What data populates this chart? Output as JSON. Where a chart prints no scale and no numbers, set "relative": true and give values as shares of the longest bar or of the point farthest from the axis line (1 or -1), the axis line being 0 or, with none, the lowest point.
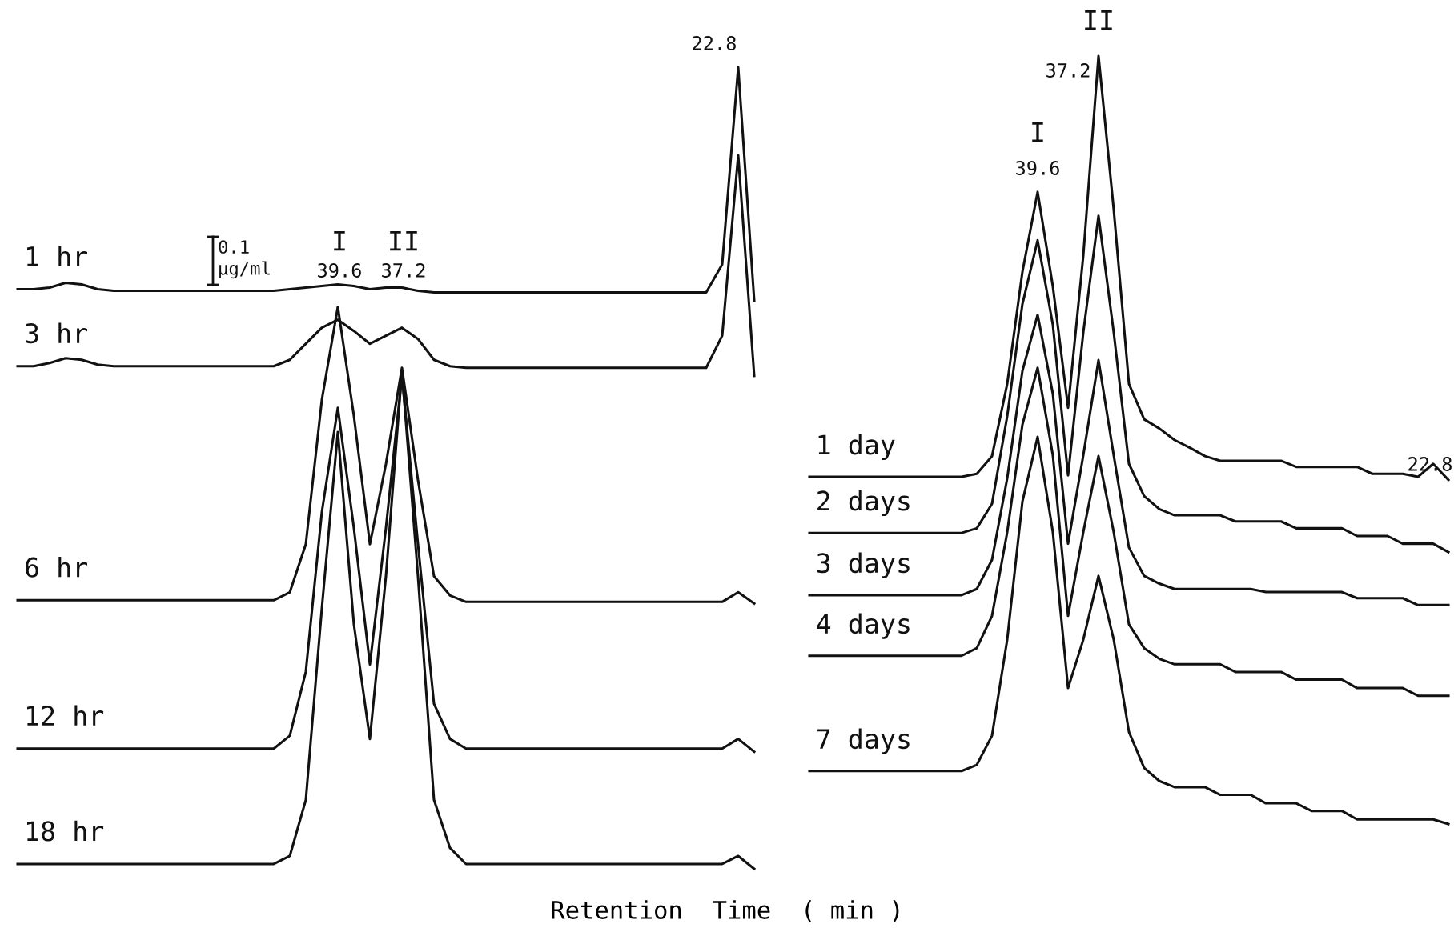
{
  "chart_data": [
    {
      "type": "line",
      "relative": true,
      "xlabel": "Retention  Time  ( min )",
      "grid": false,
      "legend": false,
      "marker": "none",
      "line_style": "solid",
      "categories": [
        null,
        null,
        null,
        null,
        null,
        null,
        null,
        null,
        null,
        null,
        null,
        null,
        null,
        null,
        null,
        null,
        null,
        null,
        null,
        null,
        null,
        null,
        null,
        null,
        null,
        null,
        null,
        null,
        null,
        null,
        null,
        null,
        null,
        null,
        null,
        null,
        null,
        null,
        null,
        null,
        null,
        null,
        null,
        null,
        null,
        null,
        null
      ],
      "annotations": [
        "0.1\nµg/ml",
        "I",
        "39.6",
        "II",
        "37.2",
        "22.8"
      ],
      "series": [
        {
          "name": "1 hr",
          "color": "#111111",
          "values": [
            0.723,
            0.723,
            0.725,
            0.731,
            0.729,
            0.723,
            0.721,
            0.721,
            0.721,
            0.721,
            0.721,
            0.721,
            0.721,
            0.721,
            0.721,
            0.721,
            0.721,
            0.723,
            0.725,
            0.727,
            0.729,
            0.727,
            0.723,
            0.725,
            0.725,
            0.721,
            0.719,
            0.719,
            0.719,
            0.719,
            0.719,
            0.719,
            0.719,
            0.719,
            0.719,
            0.719,
            0.719,
            0.719,
            0.719,
            0.719,
            0.719,
            0.719,
            0.719,
            0.719,
            0.754,
            1,
            0.709
          ]
        },
        {
          "name": "3 hr",
          "color": "#111111",
          "values": [
            0.627,
            0.627,
            0.631,
            0.637,
            0.635,
            0.629,
            0.627,
            0.627,
            0.627,
            0.627,
            0.627,
            0.627,
            0.627,
            0.627,
            0.627,
            0.627,
            0.627,
            0.635,
            0.655,
            0.675,
            0.685,
            0.671,
            0.655,
            0.665,
            0.675,
            0.661,
            0.635,
            0.627,
            0.625,
            0.625,
            0.625,
            0.625,
            0.625,
            0.625,
            0.625,
            0.625,
            0.625,
            0.625,
            0.625,
            0.625,
            0.625,
            0.625,
            0.625,
            0.625,
            0.665,
            0.89,
            0.615
          ]
        },
        {
          "name": "6 hr",
          "color": "#111111",
          "values": [
            0.335,
            0.335,
            0.335,
            0.335,
            0.335,
            0.335,
            0.335,
            0.335,
            0.335,
            0.335,
            0.335,
            0.335,
            0.335,
            0.335,
            0.335,
            0.335,
            0.335,
            0.345,
            0.405,
            0.585,
            0.701,
            0.565,
            0.405,
            0.505,
            0.625,
            0.485,
            0.365,
            0.341,
            0.333,
            0.333,
            0.333,
            0.333,
            0.333,
            0.333,
            0.333,
            0.333,
            0.333,
            0.333,
            0.333,
            0.333,
            0.333,
            0.333,
            0.333,
            0.333,
            0.333,
            0.345,
            0.331
          ]
        },
        {
          "name": "12 hr",
          "color": "#111111",
          "values": [
            0.15,
            0.15,
            0.15,
            0.15,
            0.15,
            0.15,
            0.15,
            0.15,
            0.15,
            0.15,
            0.15,
            0.15,
            0.15,
            0.15,
            0.15,
            0.15,
            0.15,
            0.166,
            0.246,
            0.445,
            0.575,
            0.425,
            0.255,
            0.425,
            0.615,
            0.405,
            0.206,
            0.162,
            0.15,
            0.15,
            0.15,
            0.15,
            0.15,
            0.15,
            0.15,
            0.15,
            0.15,
            0.15,
            0.15,
            0.15,
            0.15,
            0.15,
            0.15,
            0.15,
            0.15,
            0.162,
            0.146
          ]
        },
        {
          "name": "18 hr",
          "color": "#111111",
          "values": [
            0.006,
            0.006,
            0.006,
            0.006,
            0.006,
            0.006,
            0.006,
            0.006,
            0.006,
            0.006,
            0.006,
            0.006,
            0.006,
            0.006,
            0.006,
            0.006,
            0.006,
            0.016,
            0.086,
            0.325,
            0.545,
            0.305,
            0.162,
            0.365,
            0.621,
            0.365,
            0.086,
            0.026,
            0.006,
            0.006,
            0.006,
            0.006,
            0.006,
            0.006,
            0.006,
            0.006,
            0.006,
            0.006,
            0.006,
            0.006,
            0.006,
            0.006,
            0.006,
            0.006,
            0.006,
            0.016,
            0
          ]
        }
      ]
    },
    {
      "type": "line",
      "relative": true,
      "grid": false,
      "legend": false,
      "marker": "none",
      "line_style": "solid",
      "categories": [
        null,
        null,
        null,
        null,
        null,
        null,
        null,
        null,
        null,
        null,
        null,
        null,
        null,
        null,
        null,
        null,
        null,
        null,
        null,
        null,
        null,
        null,
        null,
        null,
        null,
        null,
        null,
        null,
        null,
        null,
        null,
        null,
        null,
        null,
        null,
        null,
        null,
        null,
        null,
        null,
        null,
        null,
        null
      ],
      "annotations": [
        "I",
        "39.6",
        "II",
        "37.2",
        "22.8"
      ],
      "series": [
        {
          "name": "1 day",
          "color": "#111111",
          "values": [
            0.452,
            0.452,
            0.452,
            0.452,
            0.452,
            0.452,
            0.452,
            0.452,
            0.452,
            0.452,
            0.452,
            0.456,
            0.479,
            0.573,
            0.719,
            0.823,
            0.7,
            0.542,
            0.74,
            1,
            0.8,
            0.573,
            0.527,
            0.515,
            0.5,
            0.49,
            0.479,
            0.473,
            0.473,
            0.473,
            0.473,
            0.473,
            0.465,
            0.465,
            0.465,
            0.465,
            0.465,
            0.456,
            0.456,
            0.456,
            0.452,
            0.469,
            0.448
          ]
        },
        {
          "name": "2 days",
          "color": "#111111",
          "values": [
            0.379,
            0.379,
            0.379,
            0.379,
            0.379,
            0.379,
            0.379,
            0.379,
            0.379,
            0.379,
            0.379,
            0.385,
            0.417,
            0.531,
            0.677,
            0.76,
            0.65,
            0.454,
            0.64,
            0.792,
            0.64,
            0.469,
            0.427,
            0.41,
            0.402,
            0.402,
            0.402,
            0.402,
            0.394,
            0.394,
            0.394,
            0.394,
            0.385,
            0.385,
            0.385,
            0.385,
            0.375,
            0.375,
            0.375,
            0.365,
            0.365,
            0.365,
            0.354
          ]
        },
        {
          "name": "3 days",
          "color": "#111111",
          "values": [
            0.298,
            0.298,
            0.298,
            0.298,
            0.298,
            0.298,
            0.298,
            0.298,
            0.298,
            0.298,
            0.298,
            0.306,
            0.344,
            0.45,
            0.59,
            0.663,
            0.56,
            0.365,
            0.48,
            0.604,
            0.48,
            0.36,
            0.323,
            0.313,
            0.306,
            0.306,
            0.306,
            0.306,
            0.306,
            0.306,
            0.302,
            0.302,
            0.302,
            0.302,
            0.302,
            0.302,
            0.294,
            0.294,
            0.294,
            0.294,
            0.285,
            0.285,
            0.285
          ]
        },
        {
          "name": "4 days",
          "color": "#111111",
          "values": [
            0.219,
            0.219,
            0.219,
            0.219,
            0.219,
            0.219,
            0.219,
            0.219,
            0.219,
            0.219,
            0.219,
            0.229,
            0.271,
            0.38,
            0.52,
            0.594,
            0.48,
            0.271,
            0.38,
            0.479,
            0.38,
            0.26,
            0.229,
            0.215,
            0.208,
            0.208,
            0.208,
            0.208,
            0.198,
            0.198,
            0.198,
            0.198,
            0.188,
            0.188,
            0.188,
            0.188,
            0.177,
            0.177,
            0.177,
            0.177,
            0.167,
            0.167,
            0.167
          ]
        },
        {
          "name": "7 days",
          "color": "#111111",
          "values": [
            0.069,
            0.069,
            0.069,
            0.069,
            0.069,
            0.069,
            0.069,
            0.069,
            0.069,
            0.069,
            0.069,
            0.077,
            0.115,
            0.24,
            0.42,
            0.504,
            0.38,
            0.177,
            0.24,
            0.323,
            0.24,
            0.12,
            0.073,
            0.056,
            0.048,
            0.048,
            0.048,
            0.038,
            0.038,
            0.038,
            0.027,
            0.027,
            0.027,
            0.017,
            0.017,
            0.017,
            0.006,
            0.006,
            0.006,
            0.006,
            0.006,
            0.006,
            0
          ]
        }
      ]
    }
  ]
}
